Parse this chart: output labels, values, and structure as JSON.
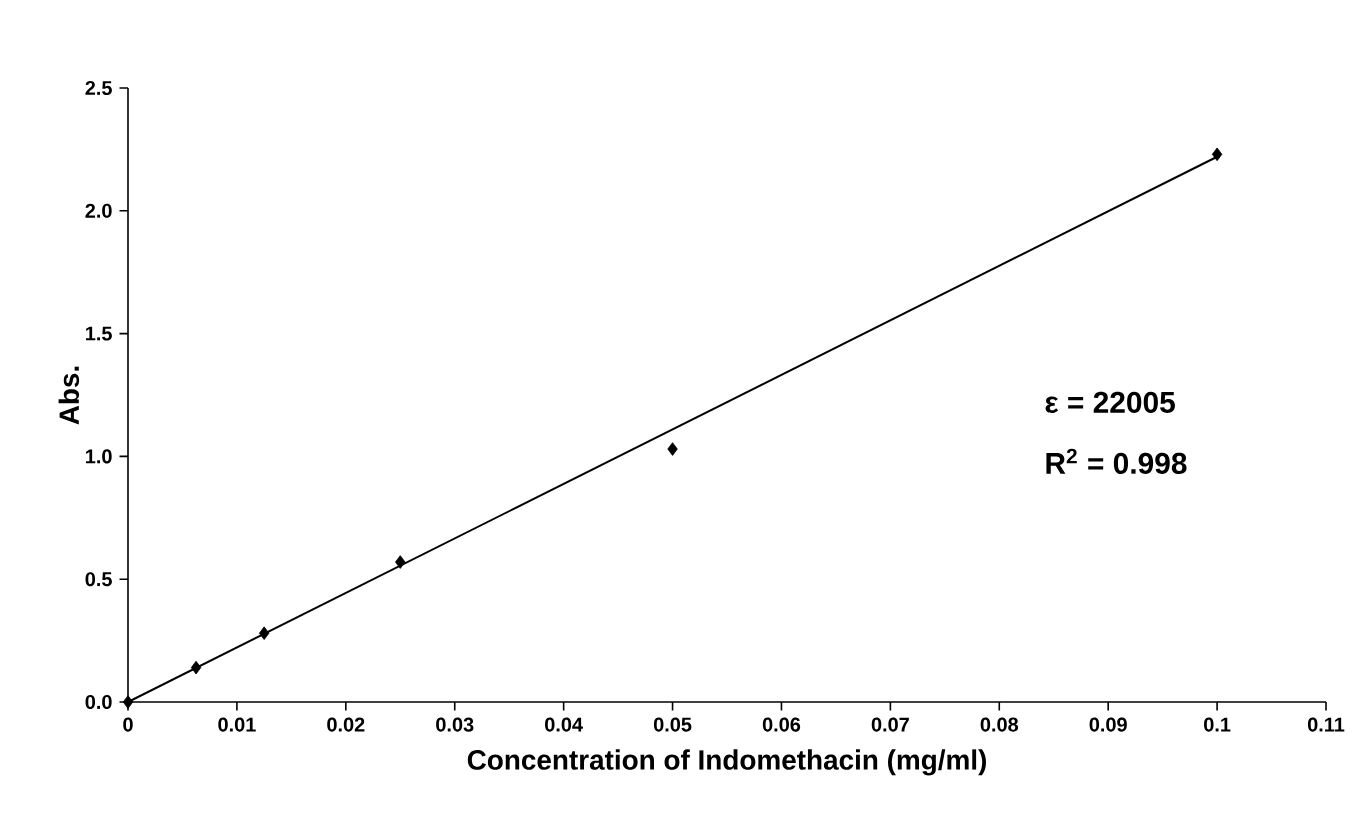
{
  "chart_data": {
    "type": "scatter",
    "xlabel": "Concentration of Indomethacin (mg/ml)",
    "ylabel": "Abs.",
    "series": [
      {
        "color": "#000000",
        "x": [
          0,
          0.00625,
          0.0125,
          0.025,
          0.05,
          0.1
        ],
        "values": [
          0,
          0.14,
          0.28,
          0.57,
          1.03,
          2.23
        ]
      },
      {
        "type": "line",
        "marker": "none",
        "color": "#000000",
        "x": [
          0,
          0.1
        ],
        "values": [
          0,
          2.22
        ]
      }
    ],
    "marker": "diamond",
    "xlim": [
      0,
      0.11
    ],
    "ylim": [
      0,
      2.5
    ],
    "xticks": [
      0,
      0.01,
      0.02,
      0.03,
      0.04,
      0.05,
      0.06,
      0.07,
      0.08,
      0.09,
      0.1,
      0.11
    ],
    "yticks": [
      {
        "value": 0,
        "label": "0.0"
      },
      0.5,
      {
        "value": 1,
        "label": "1.0"
      },
      1.5,
      {
        "value": 2,
        "label": "2.0"
      },
      2.5
    ],
    "annotations": [
      "ε = 22005",
      "R$^{2}$ = 0.998"
    ]
  }
}
